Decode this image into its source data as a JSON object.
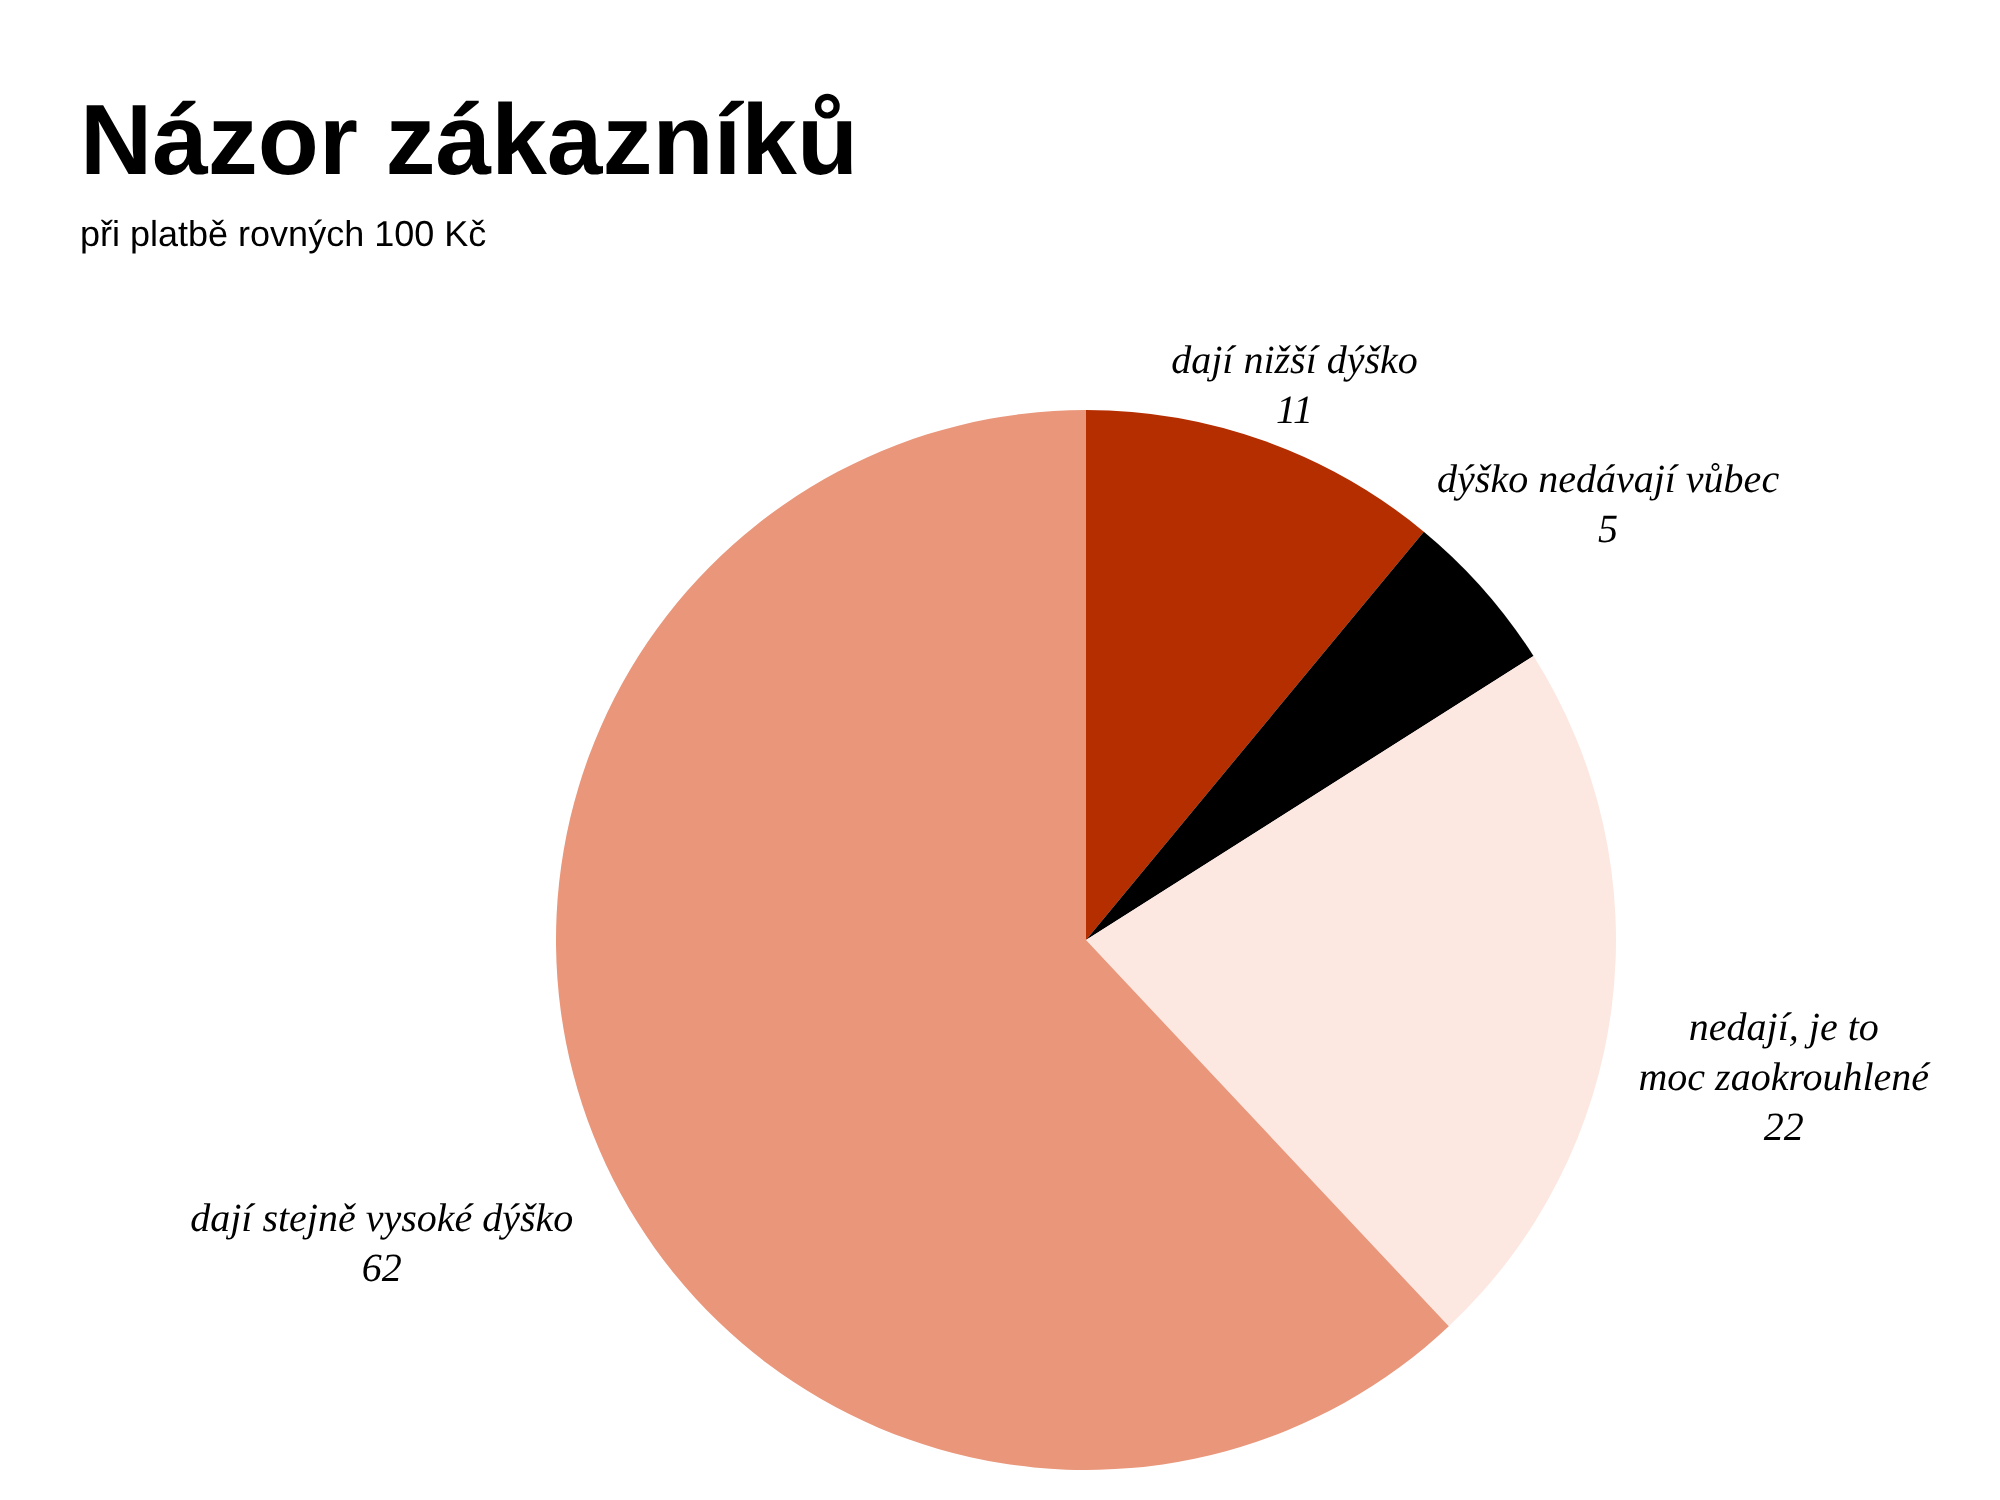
{
  "chart_data": {
    "type": "pie",
    "title": "Názor zákazníků",
    "subtitle": "při platbě rovných 100 Kč",
    "categories": [
      "dají nižší dýško",
      "dýško nedávají vůbec",
      "nedají, je to moc zaokrouhlené",
      "dají stejně vysoké dýško"
    ],
    "values": [
      11,
      5,
      22,
      62
    ],
    "colors": [
      "#b52e00",
      "#000000",
      "#fde8e1",
      "#e9967a"
    ],
    "data_labels": true
  }
}
